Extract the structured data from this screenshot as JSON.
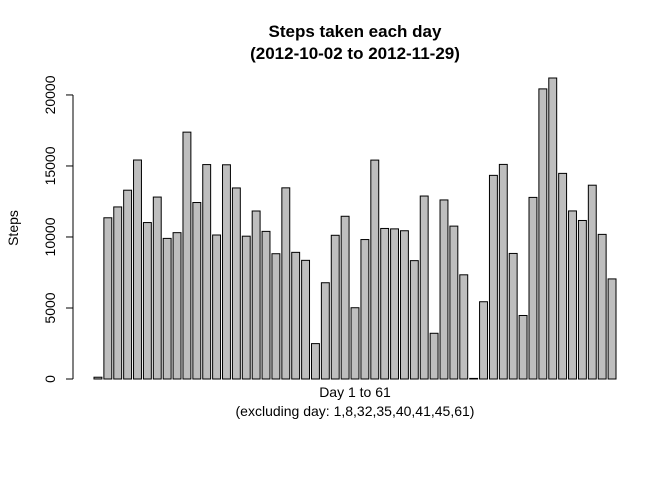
{
  "chart_data": {
    "type": "bar",
    "title": "Steps taken each day",
    "subtitle": "(2012-10-02 to 2012-11-29)",
    "xlabel": "Day 1 to 61",
    "xlabel_sub": "(excluding day: 1,8,32,35,40,41,45,61)",
    "ylabel": "Steps",
    "ylim": [
      0,
      21194
    ],
    "yticks": [
      "0",
      "5000",
      "10000",
      "15000",
      "20000"
    ],
    "grid": false,
    "colors": {
      "bar_fill": "#bebebe",
      "bar_stroke": "#000000"
    },
    "values": [
      126,
      11352,
      12116,
      13294,
      15420,
      11015,
      12811,
      9900,
      10304,
      17382,
      12426,
      15098,
      10139,
      15084,
      13452,
      10056,
      11829,
      10395,
      8821,
      13460,
      8918,
      8355,
      2492,
      6778,
      10119,
      11458,
      5018,
      9819,
      15414,
      10600,
      10571,
      10439,
      8334,
      12883,
      3219,
      12608,
      10765,
      7336,
      41,
      5441,
      14339,
      15110,
      8841,
      4472,
      12787,
      20427,
      21194,
      14478,
      11834,
      11162,
      13646,
      10183,
      7047
    ]
  }
}
